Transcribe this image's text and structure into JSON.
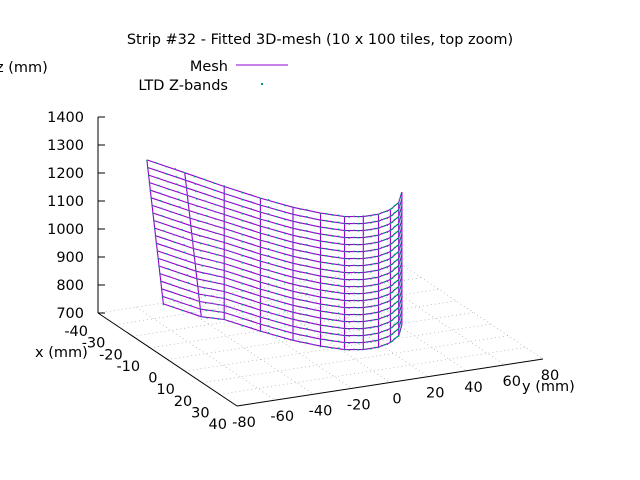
{
  "chart_data": {
    "type": "surface-3d",
    "title": "Strip #32 - Fitted 3D-mesh (10 x 100 tiles, top zoom)",
    "xlabel": "x (mm)",
    "ylabel": "y (mm)",
    "zlabel": "z (mm)",
    "xlim": [
      -40,
      40
    ],
    "ylim": [
      -80,
      80
    ],
    "zlim": [
      700,
      1400
    ],
    "x_ticks": [
      "-40",
      "-30",
      "-20",
      "-10",
      "0",
      "10",
      "20",
      "30",
      "40"
    ],
    "y_ticks": [
      "-80",
      "-60",
      "-40",
      "-20",
      "0",
      "20",
      "40",
      "60",
      "80"
    ],
    "z_ticks": [
      "700",
      "800",
      "900",
      "1000",
      "1100",
      "1200",
      "1300",
      "1400"
    ],
    "legend": [
      {
        "label": "Mesh",
        "style": "line",
        "color": "#9400d3"
      },
      {
        "label": "LTD Z-bands",
        "style": "points",
        "color": "#009e73"
      }
    ],
    "mesh": {
      "rows_z": [
        1195,
        1170,
        1145,
        1120,
        1095,
        1070,
        1045,
        1020,
        995,
        970,
        945,
        920,
        895,
        870,
        845,
        820,
        795,
        770,
        745,
        720
      ],
      "cols_y": [
        -50,
        -42,
        -34,
        -26,
        -18,
        -10,
        -2,
        6,
        14,
        22,
        30,
        38
      ],
      "x_at_y": [
        -45,
        -32,
        -18,
        -6,
        4,
        11,
        16,
        18,
        18,
        16,
        12,
        5
      ]
    },
    "grid": "dotted floor",
    "legend_position": "top-center"
  }
}
